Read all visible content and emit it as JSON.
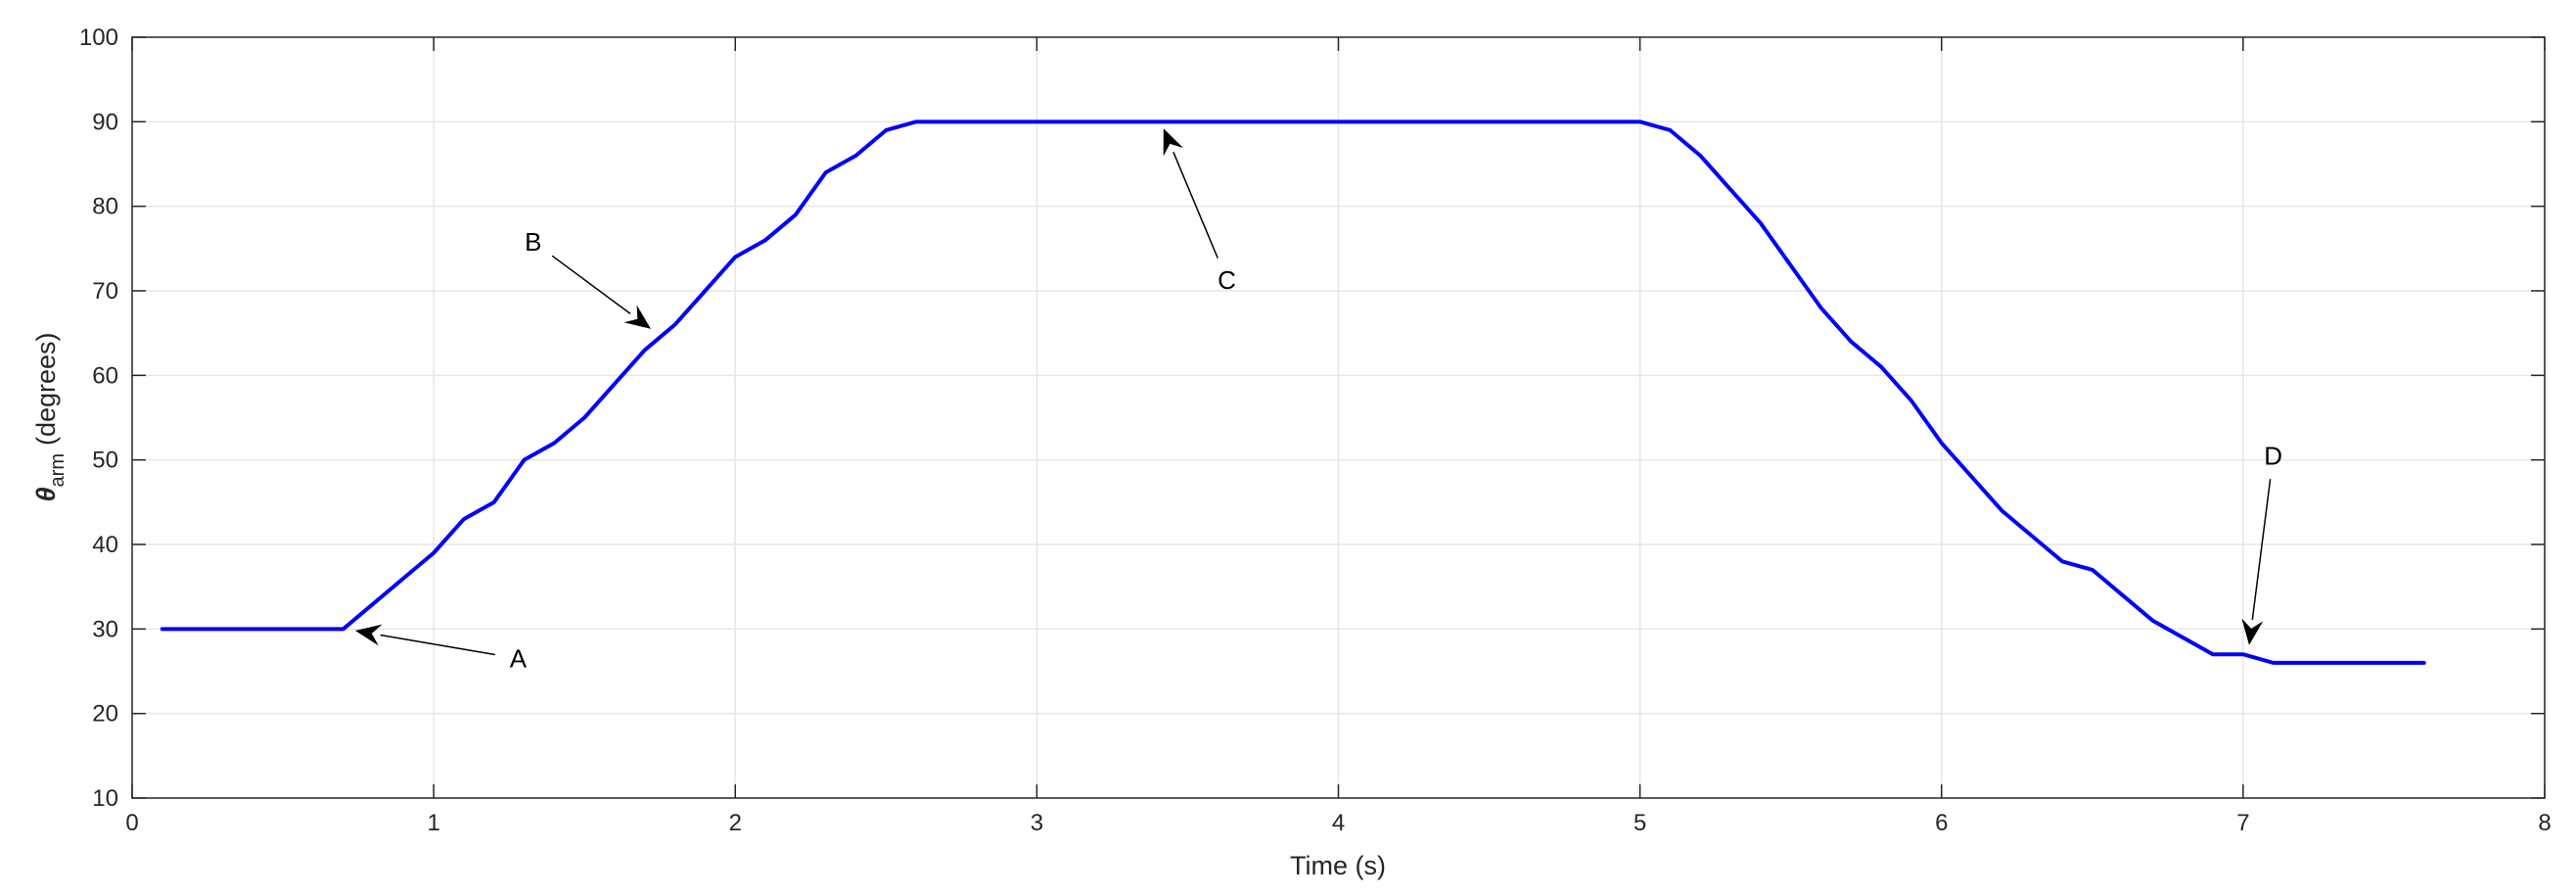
{
  "chart_data": {
    "type": "line",
    "title": "",
    "xlabel": "Time (s)",
    "ylabel": {
      "symbol": "θ",
      "subscript": "arm",
      "unit": "(degrees)"
    },
    "xlim": [
      0,
      8
    ],
    "ylim": [
      10,
      100
    ],
    "xticks": [
      0,
      1,
      2,
      3,
      4,
      5,
      6,
      7,
      8
    ],
    "yticks": [
      10,
      20,
      30,
      40,
      50,
      60,
      70,
      80,
      90,
      100
    ],
    "grid": true,
    "line_color": "#0000ff",
    "series": [
      {
        "x": [
          0.1,
          0.7,
          0.8,
          0.9,
          1.0,
          1.1,
          1.2,
          1.3,
          1.4,
          1.5,
          1.6,
          1.7,
          1.8,
          1.9,
          2.0,
          2.1,
          2.2,
          2.3,
          2.4,
          2.5,
          2.6,
          5.0,
          5.1,
          5.2,
          5.3,
          5.4,
          5.5,
          5.6,
          5.7,
          5.8,
          5.9,
          6.0,
          6.1,
          6.2,
          6.3,
          6.4,
          6.5,
          6.6,
          6.7,
          6.8,
          6.9,
          7.0,
          7.1,
          7.6
        ],
        "y": [
          30,
          30,
          33,
          36,
          39,
          43,
          45,
          50,
          52,
          55,
          59,
          63,
          66,
          70,
          74,
          76,
          79,
          84,
          86,
          89,
          90,
          90,
          89,
          86,
          82,
          78,
          73,
          68,
          64,
          61,
          57,
          52,
          48,
          44,
          41,
          38,
          37,
          34,
          31,
          29,
          27,
          27,
          26,
          26
        ]
      }
    ],
    "annotations": [
      {
        "text": "A",
        "label_x": 1.28,
        "label_y": 26.5,
        "point_x": 0.74,
        "point_y": 29.8
      },
      {
        "text": "B",
        "label_x": 1.33,
        "label_y": 75.8,
        "point_x": 1.72,
        "point_y": 65.5
      },
      {
        "text": "C",
        "label_x": 3.63,
        "label_y": 71.3,
        "point_x": 3.42,
        "point_y": 89.2
      },
      {
        "text": "D",
        "label_x": 7.1,
        "label_y": 50.5,
        "point_x": 7.02,
        "point_y": 28.1
      }
    ]
  }
}
